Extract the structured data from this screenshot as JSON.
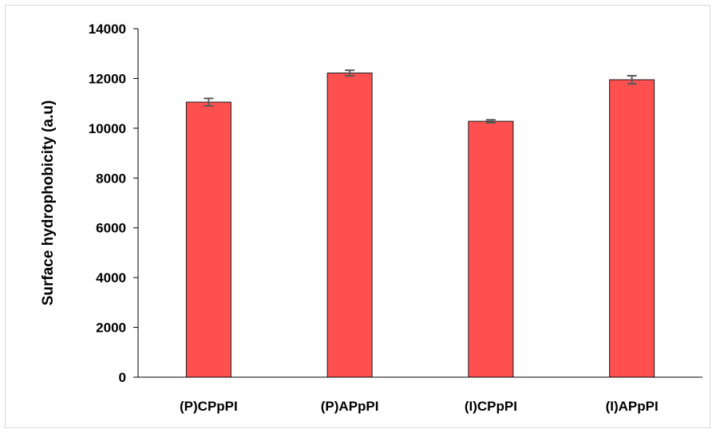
{
  "chart_data": {
    "type": "bar",
    "title": "",
    "xlabel": "",
    "ylabel": "Surface hydrophobicity (a.u)",
    "ylim": [
      0,
      14000
    ],
    "yticks": [
      0,
      2000,
      4000,
      6000,
      8000,
      10000,
      12000,
      14000
    ],
    "categories": [
      "(P)CPpPI",
      "(P)APpPI",
      "(I)CPpPI",
      "(I)APpPI"
    ],
    "values": [
      11050,
      12220,
      10280,
      11950
    ],
    "errors": [
      150,
      110,
      60,
      160
    ],
    "grid": false,
    "legend": "none",
    "colors": {
      "bar_fill": "#ff5050",
      "bar_stroke": "#1a1a1a",
      "error_bar": "#595959",
      "axis": "#000000"
    }
  }
}
